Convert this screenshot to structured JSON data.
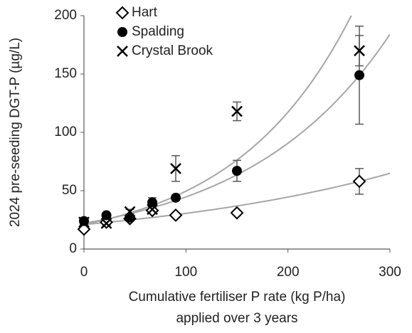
{
  "chart_data": {
    "type": "scatter",
    "x_label": [
      "Cumulative fertiliser P rate (kg P/ha)",
      "applied over 3 years"
    ],
    "y_label": "2024 pre-seeding DGT-P (µg/L)",
    "x": [
      0,
      22,
      45,
      67,
      90,
      150,
      270
    ],
    "series": [
      {
        "name": "Hart",
        "marker": "diamond",
        "color": "#000000",
        "values": [
          17,
          23,
          26,
          33,
          29,
          31,
          58
        ],
        "errors": [
          2,
          2,
          2,
          2,
          2,
          2,
          11
        ],
        "trendline": {
          "intercept": 21,
          "rate": 0.00376
        }
      },
      {
        "name": "Spalding",
        "marker": "circle",
        "color": "#000000",
        "values": [
          24,
          29,
          27,
          40,
          44,
          67,
          149
        ],
        "errors": [
          2,
          2,
          2,
          4,
          2,
          9,
          42
        ],
        "trendline": {
          "intercept": 22,
          "rate": 0.00708
        }
      },
      {
        "name": "Crystal Brook",
        "marker": "x",
        "color": "#000000",
        "values": [
          23,
          22,
          32,
          34,
          69,
          118,
          170
        ],
        "errors": [
          2,
          2,
          2,
          2,
          11,
          8,
          13
        ],
        "trendline": {
          "intercept": 21,
          "rate": 0.0086
        }
      }
    ],
    "error_color": "#595959",
    "trend_color": "#a6a6a6",
    "xlim": [
      0,
      300
    ],
    "xticks": [
      0,
      100,
      200,
      300
    ],
    "ylim": [
      0,
      200
    ],
    "yticks": [
      0,
      50,
      100,
      150,
      200
    ],
    "grid": false,
    "legend": "top-left"
  }
}
